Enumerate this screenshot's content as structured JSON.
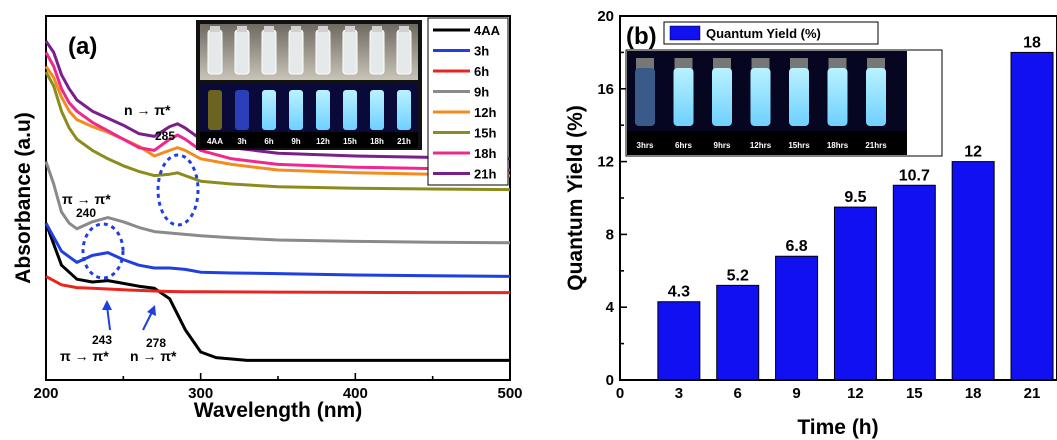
{
  "chart_data": [
    {
      "type": "line",
      "panel_label": "(a)",
      "xlabel": "Wavelength (nm)",
      "ylabel": "Absorbance (a.u)",
      "xlim": [
        200,
        500
      ],
      "xticks": [
        "200",
        "300",
        "400",
        "500"
      ],
      "legend_placement": "top-right",
      "series": [
        {
          "name": "4AA",
          "color": "#000000",
          "x": [
            200,
            210,
            220,
            230,
            240,
            250,
            260,
            270,
            280,
            290,
            300,
            310,
            320,
            330,
            350,
            400,
            450,
            500
          ],
          "y": [
            0.56,
            0.41,
            0.36,
            0.35,
            0.355,
            0.345,
            0.335,
            0.328,
            0.29,
            0.18,
            0.1,
            0.08,
            0.075,
            0.07,
            0.07,
            0.07,
            0.07,
            0.07
          ]
        },
        {
          "name": "3h",
          "color": "#1f3fe0",
          "x": [
            200,
            205,
            210,
            215,
            220,
            230,
            240,
            250,
            260,
            270,
            280,
            290,
            300,
            320,
            350,
            400,
            450,
            500
          ],
          "y": [
            0.56,
            0.51,
            0.46,
            0.44,
            0.42,
            0.445,
            0.455,
            0.43,
            0.41,
            0.4,
            0.4,
            0.395,
            0.385,
            0.382,
            0.38,
            0.375,
            0.372,
            0.37
          ]
        },
        {
          "name": "6h",
          "color": "#e8261f",
          "x": [
            200,
            210,
            220,
            230,
            240,
            250,
            260,
            270,
            280,
            290,
            300,
            350,
            400,
            450,
            500
          ],
          "y": [
            0.37,
            0.34,
            0.33,
            0.328,
            0.325,
            0.322,
            0.32,
            0.318,
            0.316,
            0.315,
            0.315,
            0.314,
            0.313,
            0.312,
            0.312
          ]
        },
        {
          "name": "9h",
          "color": "#8a8a8a",
          "x": [
            200,
            205,
            210,
            215,
            220,
            230,
            240,
            250,
            260,
            270,
            280,
            290,
            300,
            320,
            350,
            400,
            450,
            500
          ],
          "y": [
            0.78,
            0.7,
            0.6,
            0.56,
            0.54,
            0.565,
            0.58,
            0.565,
            0.545,
            0.53,
            0.525,
            0.52,
            0.515,
            0.508,
            0.5,
            0.495,
            0.492,
            0.49
          ]
        },
        {
          "name": "12h",
          "color": "#f28c1e",
          "x": [
            200,
            205,
            210,
            215,
            220,
            230,
            240,
            250,
            260,
            270,
            280,
            285,
            290,
            300,
            320,
            350,
            400,
            450,
            500
          ],
          "y": [
            1.12,
            1.08,
            1.01,
            0.96,
            0.93,
            0.905,
            0.885,
            0.86,
            0.835,
            0.8,
            0.82,
            0.83,
            0.82,
            0.79,
            0.77,
            0.75,
            0.74,
            0.735,
            0.73
          ]
        },
        {
          "name": "15h",
          "color": "#8c8c1e",
          "x": [
            200,
            205,
            210,
            215,
            220,
            230,
            240,
            250,
            260,
            270,
            280,
            285,
            290,
            300,
            320,
            350,
            400,
            450,
            500
          ],
          "y": [
            1.1,
            1.05,
            0.96,
            0.9,
            0.86,
            0.82,
            0.79,
            0.765,
            0.745,
            0.73,
            0.735,
            0.74,
            0.73,
            0.71,
            0.7,
            0.69,
            0.685,
            0.682,
            0.68
          ]
        },
        {
          "name": "18h",
          "color": "#f0288c",
          "x": [
            200,
            205,
            210,
            215,
            220,
            230,
            240,
            250,
            260,
            270,
            280,
            285,
            290,
            300,
            320,
            350,
            400,
            450,
            500
          ],
          "y": [
            1.17,
            1.12,
            1.04,
            0.99,
            0.96,
            0.92,
            0.89,
            0.86,
            0.83,
            0.82,
            0.86,
            0.875,
            0.86,
            0.82,
            0.79,
            0.77,
            0.76,
            0.755,
            0.75
          ]
        },
        {
          "name": "21h",
          "color": "#7a1e8c",
          "x": [
            200,
            205,
            210,
            215,
            220,
            230,
            240,
            250,
            260,
            270,
            280,
            285,
            290,
            300,
            320,
            350,
            400,
            450,
            500
          ],
          "y": [
            1.21,
            1.17,
            1.09,
            1.04,
            1.0,
            0.96,
            0.935,
            0.91,
            0.88,
            0.87,
            0.905,
            0.915,
            0.9,
            0.86,
            0.83,
            0.81,
            0.8,
            0.795,
            0.79
          ]
        }
      ],
      "annotations": [
        {
          "text": "n → π*",
          "x": 285,
          "y": 1.02
        },
        {
          "text": "285",
          "x": 285,
          "y": 0.96
        },
        {
          "text": "π → π*",
          "x": 222,
          "y": 0.7
        },
        {
          "text": "240",
          "x": 225,
          "y": 0.655
        },
        {
          "text": "243",
          "x": 233,
          "y": 0.16
        },
        {
          "text": "278",
          "x": 270,
          "y": 0.145
        },
        {
          "text": "π → π*",
          "x": 228,
          "y": 0.09
        },
        {
          "text": "n → π*",
          "x": 275,
          "y": 0.09
        }
      ],
      "inset_vial_labels": [
        "4AA",
        "3h",
        "6h",
        "9h",
        "12h",
        "15h",
        "18h",
        "21h"
      ]
    },
    {
      "type": "bar",
      "panel_label": "(b)",
      "xlabel": "Time (h)",
      "ylabel": "Quantum Yield (%)",
      "xlim": [
        0,
        21
      ],
      "ylim": [
        0,
        20
      ],
      "xticks": [
        "0",
        "3",
        "6",
        "9",
        "12",
        "15",
        "18",
        "21"
      ],
      "yticks": [
        "0",
        "4",
        "8",
        "12",
        "16",
        "20"
      ],
      "legend_placement": "top-left",
      "series": [
        {
          "name": "Quantum Yield (%)",
          "color": "#1010f0",
          "x": [
            3,
            6,
            9,
            12,
            15,
            18,
            21
          ],
          "values": [
            4.3,
            5.2,
            6.8,
            9.5,
            10.7,
            12,
            18
          ],
          "labels": [
            "4.3",
            "5.2",
            "6.8",
            "9.5",
            "10.7",
            "12",
            "18"
          ]
        }
      ],
      "inset_vial_labels": [
        "3hrs",
        "6hrs",
        "9hrs",
        "12hrs",
        "15hrs",
        "18hrs",
        "21hrs"
      ]
    }
  ]
}
